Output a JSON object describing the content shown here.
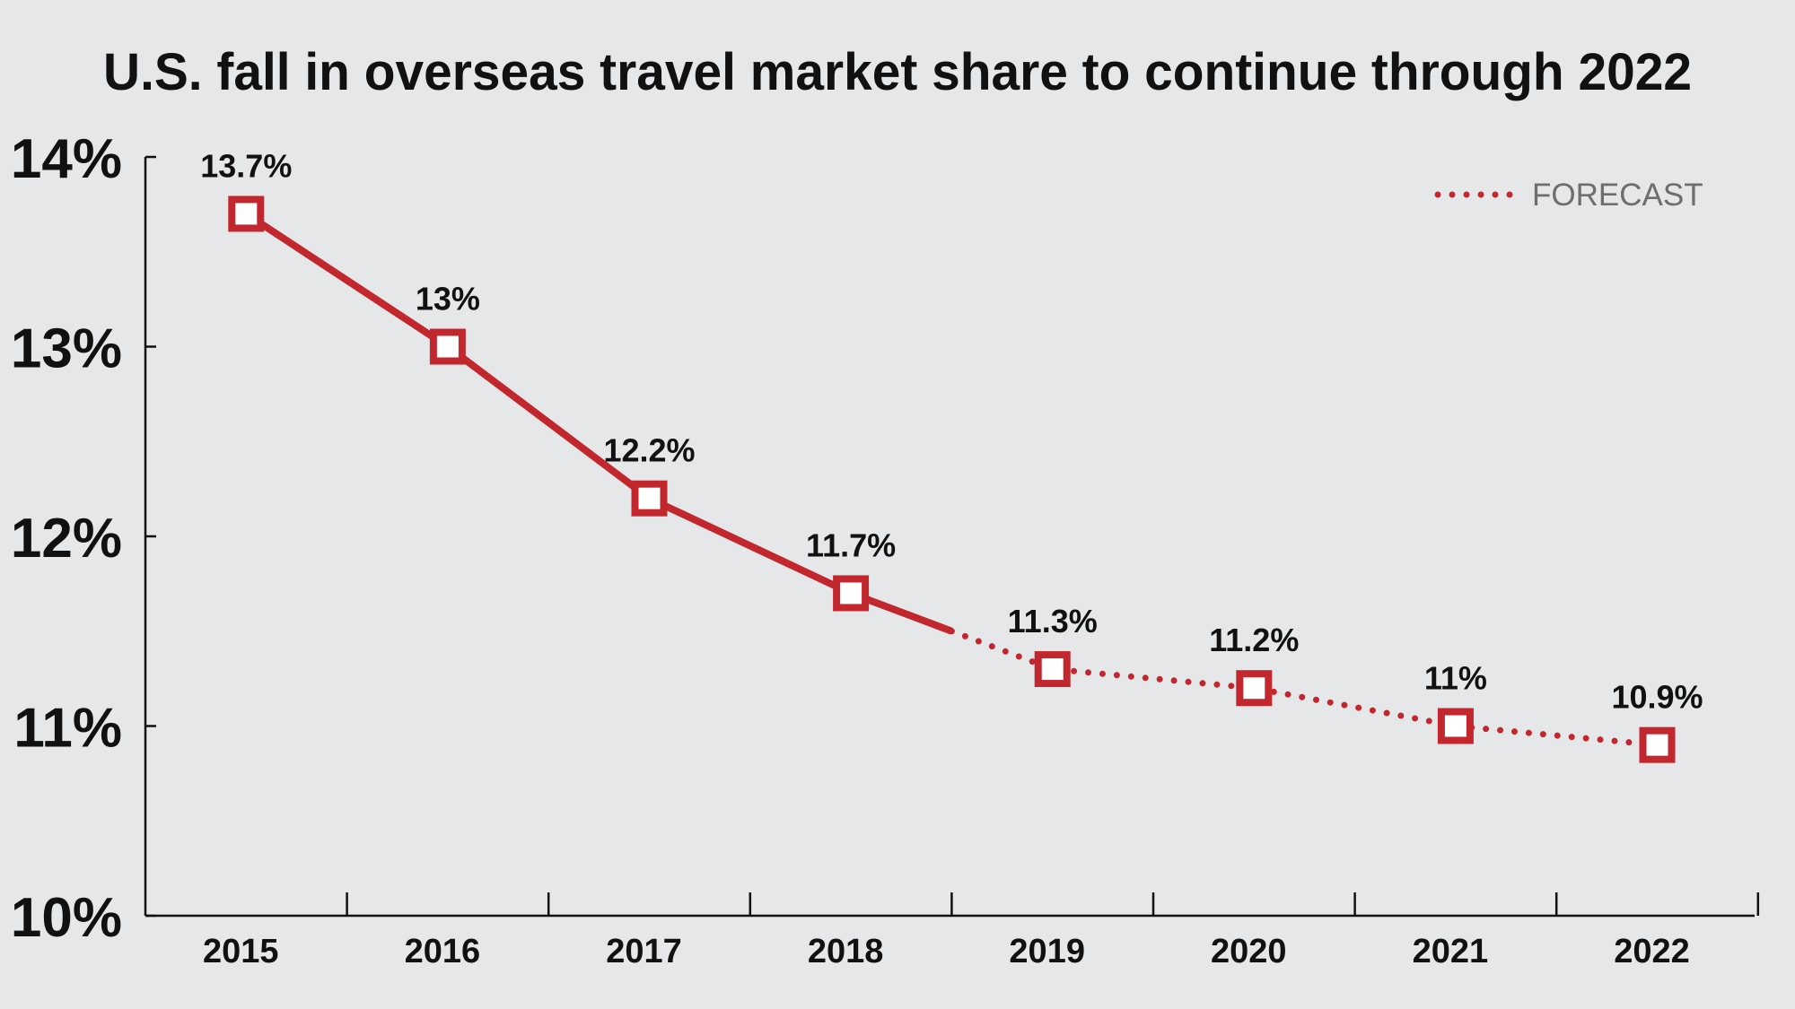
{
  "chart_data": {
    "type": "line",
    "title": "U.S. fall in overseas travel market share to continue through 2022",
    "categories": [
      "2015",
      "2016",
      "2017",
      "2018",
      "2019",
      "2020",
      "2021",
      "2022"
    ],
    "values": [
      13.7,
      13.0,
      12.2,
      11.7,
      11.3,
      11.2,
      11.0,
      10.9
    ],
    "data_labels": [
      "13.7%",
      "13%",
      "12.2%",
      "11.7%",
      "11.3%",
      "11.2%",
      "11%",
      "10.9%"
    ],
    "forecast_from_index": 4,
    "ylim": [
      10,
      14
    ],
    "yticks": [
      10,
      11,
      12,
      13,
      14
    ],
    "ytick_labels": [
      "10%",
      "11%",
      "12%",
      "13%",
      "14%"
    ],
    "legend": {
      "label": "FORECAST",
      "placement": "top-right"
    },
    "grid": false,
    "line_color": "#c1272d"
  }
}
